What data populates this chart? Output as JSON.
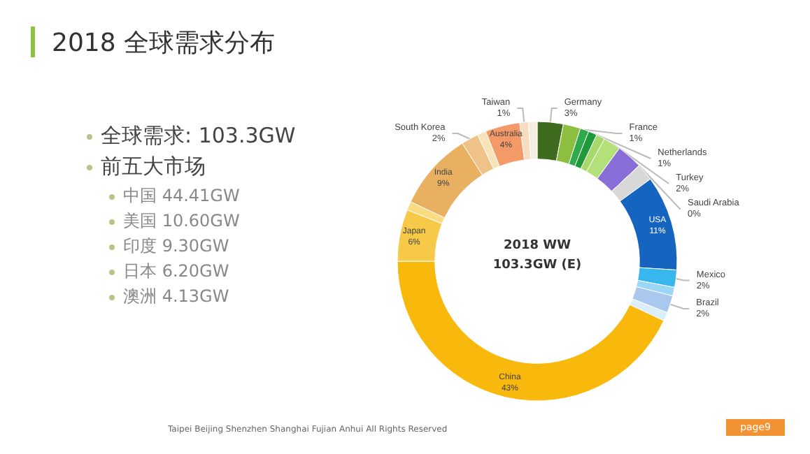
{
  "chart_data": {
    "type": "donut",
    "title": "2018 全球需求分布",
    "categories": [
      "Germany",
      null,
      "France",
      "Netherlands",
      null,
      "Turkey",
      null,
      "Saudi Arabia",
      null,
      "USA",
      "Mexico",
      null,
      "Brazil",
      null,
      "China",
      "Japan",
      null,
      "India",
      "South Korea",
      null,
      "Australia",
      "Taiwan",
      null
    ],
    "values": [
      3,
      2,
      1,
      1,
      1,
      2,
      3,
      0,
      2,
      11,
      2,
      1,
      2,
      1,
      43,
      6,
      1,
      9,
      2,
      1,
      4,
      1,
      1
    ],
    "value_labels": [
      "3%",
      null,
      "1%",
      "1%",
      null,
      "2%",
      null,
      "0%",
      null,
      "11%",
      "2%",
      null,
      "2%",
      null,
      "43%",
      "6%",
      null,
      "9%",
      "2%",
      null,
      "4%",
      "1%",
      null
    ],
    "colors": [
      "#3f6b1f",
      "#8cbf3f",
      "#2faa4a",
      "#1f9a3a",
      "#a8d86a",
      "#b4e07a",
      "#8a6ed8",
      "#c8c8c8",
      "#d8d8d8",
      "#1565c0",
      "#38b6ee",
      "#9ad6f6",
      "#a8c8ee",
      "#dceefa",
      "#f8b90c",
      "#f7c948",
      "#f9dc80",
      "#e8b060",
      "#efc388",
      "#f6e4b8",
      "#f49a68",
      "#f6dcc0",
      "#f5eee0"
    ],
    "annotations": [
      "2018 WW",
      "103.3GW (E)",
      "全球需求: 103.3GW",
      "前五大市场",
      "中国 44.41GW",
      "美国 10.60GW",
      "印度 9.30GW",
      "日本 6.20GW",
      "澳洲 4.13GW",
      "Taipei   Beijing   Shenzhen   Shanghai   Fujian   Anhui   All Rights Reserved",
      "page9"
    ]
  }
}
